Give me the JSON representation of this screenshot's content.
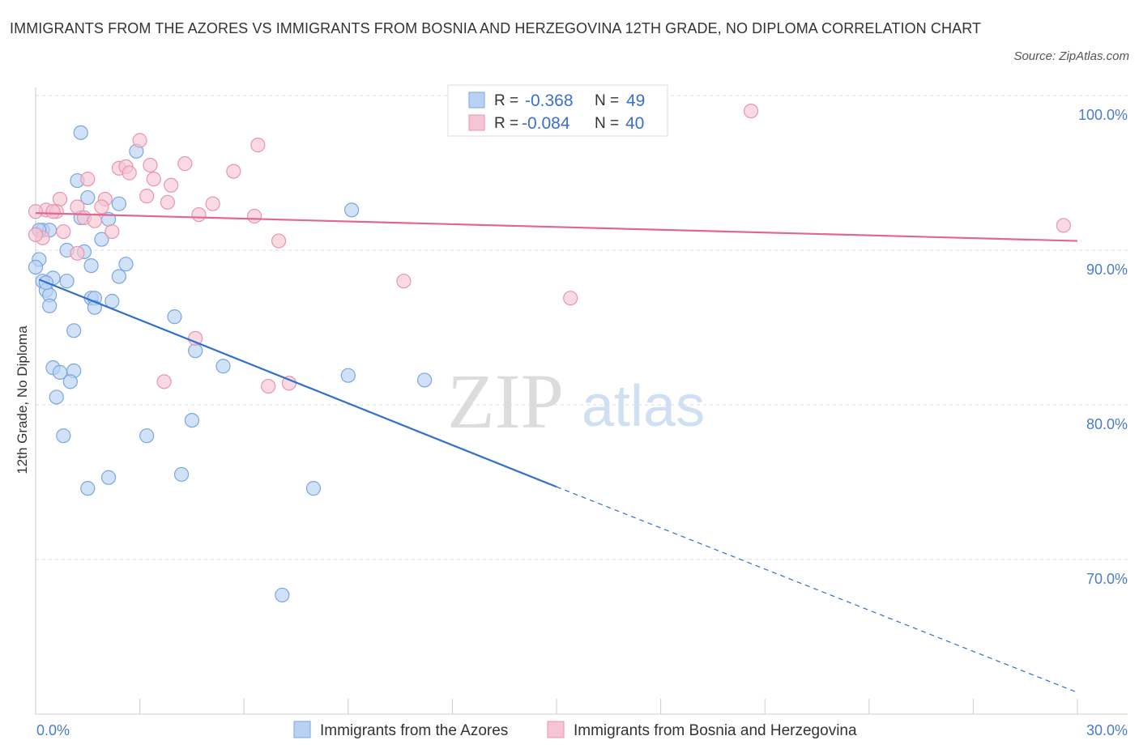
{
  "header": {
    "title": "IMMIGRANTS FROM THE AZORES VS IMMIGRANTS FROM BOSNIA AND HERZEGOVINA 12TH GRADE, NO DIPLOMA CORRELATION CHART",
    "source": "Source: ZipAtlas.com"
  },
  "watermark": {
    "zip": "ZIP",
    "atlas": "atlas"
  },
  "legend": {
    "r_label": "R =",
    "n_label": "N =",
    "series1_r": "-0.368",
    "series1_n": "49",
    "series2_r": "-0.084",
    "series2_n": "40"
  },
  "colors": {
    "blue_fill": "#b9d2f3",
    "blue_stroke": "#7aa6e0",
    "blue_line": "#2f6fd0",
    "pink_fill": "#f6c4d3",
    "pink_stroke": "#e896b0",
    "pink_line": "#e06890",
    "grid": "#dddddd",
    "tick_text": "#4a7cc9"
  },
  "chart_data": {
    "type": "scatter",
    "title": "IMMIGRANTS FROM THE AZORES VS IMMIGRANTS FROM BOSNIA AND HERZEGOVINA 12TH GRADE, NO DIPLOMA CORRELATION CHART",
    "xlabel": "",
    "ylabel": "12th Grade, No Diploma",
    "xlim": [
      0,
      30
    ],
    "ylim": [
      60,
      100
    ],
    "x_tick_labels": [
      "0.0%",
      "30.0%"
    ],
    "y_ticks": [
      70,
      80,
      90,
      100
    ],
    "y_tick_labels": [
      "70.0%",
      "80.0%",
      "90.0%",
      "100.0%"
    ],
    "grid": true,
    "legend_position": "top-center",
    "series": [
      {
        "name": "Immigrants from the Azores",
        "color": "#b9d2f3",
        "R": -0.368,
        "N": 49,
        "trend": {
          "x0": 0.1,
          "y0": 88.1,
          "x1": 15.0,
          "y1": 74.7,
          "dashed_to_x": 30.0,
          "dashed_to_y": 61.4
        },
        "points": [
          [
            1.3,
            97.6
          ],
          [
            2.9,
            96.4
          ],
          [
            1.2,
            94.5
          ],
          [
            1.5,
            93.4
          ],
          [
            2.4,
            93.0
          ],
          [
            9.1,
            92.6
          ],
          [
            1.3,
            92.1
          ],
          [
            2.1,
            92.0
          ],
          [
            0.2,
            91.3
          ],
          [
            0.4,
            91.3
          ],
          [
            1.9,
            90.7
          ],
          [
            0.9,
            90.0
          ],
          [
            1.4,
            89.9
          ],
          [
            0.1,
            89.4
          ],
          [
            2.6,
            89.1
          ],
          [
            1.6,
            89.0
          ],
          [
            0.0,
            88.9
          ],
          [
            2.4,
            88.3
          ],
          [
            0.5,
            88.2
          ],
          [
            0.2,
            88.0
          ],
          [
            0.9,
            88.0
          ],
          [
            0.3,
            87.4
          ],
          [
            0.4,
            87.1
          ],
          [
            1.6,
            86.9
          ],
          [
            1.7,
            86.9
          ],
          [
            2.2,
            86.7
          ],
          [
            0.4,
            86.4
          ],
          [
            1.7,
            86.3
          ],
          [
            4.0,
            85.7
          ],
          [
            1.1,
            84.8
          ],
          [
            4.6,
            83.5
          ],
          [
            5.4,
            82.5
          ],
          [
            0.5,
            82.4
          ],
          [
            1.1,
            82.2
          ],
          [
            0.7,
            82.1
          ],
          [
            9.0,
            81.9
          ],
          [
            11.2,
            81.6
          ],
          [
            1.0,
            81.5
          ],
          [
            0.6,
            80.5
          ],
          [
            4.5,
            79.0
          ],
          [
            0.8,
            78.0
          ],
          [
            3.2,
            78.0
          ],
          [
            4.2,
            75.5
          ],
          [
            2.1,
            75.3
          ],
          [
            1.5,
            74.6
          ],
          [
            8.0,
            74.6
          ],
          [
            7.1,
            67.7
          ],
          [
            0.1,
            91.3
          ],
          [
            0.3,
            87.9
          ]
        ]
      },
      {
        "name": "Immigrants from Bosnia and Herzegovina",
        "color": "#f6c4d3",
        "R": -0.084,
        "N": 40,
        "trend": {
          "x0": 0.0,
          "y0": 92.4,
          "x1": 30.0,
          "y1": 90.6
        },
        "points": [
          [
            20.6,
            99.0
          ],
          [
            3.0,
            97.1
          ],
          [
            6.4,
            96.8
          ],
          [
            4.3,
            95.6
          ],
          [
            3.3,
            95.5
          ],
          [
            2.4,
            95.3
          ],
          [
            2.6,
            95.4
          ],
          [
            2.7,
            95.0
          ],
          [
            5.7,
            95.1
          ],
          [
            1.5,
            94.6
          ],
          [
            3.4,
            94.6
          ],
          [
            3.9,
            94.2
          ],
          [
            3.2,
            93.5
          ],
          [
            0.7,
            93.3
          ],
          [
            2.0,
            93.3
          ],
          [
            3.8,
            93.1
          ],
          [
            5.1,
            93.0
          ],
          [
            1.2,
            92.8
          ],
          [
            0.3,
            92.6
          ],
          [
            0.6,
            92.5
          ],
          [
            0.5,
            92.5
          ],
          [
            4.7,
            92.3
          ],
          [
            6.3,
            92.2
          ],
          [
            1.4,
            92.1
          ],
          [
            1.7,
            91.9
          ],
          [
            1.9,
            92.8
          ],
          [
            0.8,
            91.2
          ],
          [
            2.2,
            91.2
          ],
          [
            0.2,
            90.8
          ],
          [
            7.0,
            90.6
          ],
          [
            1.2,
            89.8
          ],
          [
            29.6,
            91.6
          ],
          [
            10.6,
            88.0
          ],
          [
            15.4,
            86.9
          ],
          [
            4.6,
            84.3
          ],
          [
            3.7,
            81.5
          ],
          [
            7.3,
            81.4
          ],
          [
            6.7,
            81.2
          ],
          [
            0.0,
            91.0
          ],
          [
            0.0,
            92.5
          ]
        ]
      }
    ]
  }
}
